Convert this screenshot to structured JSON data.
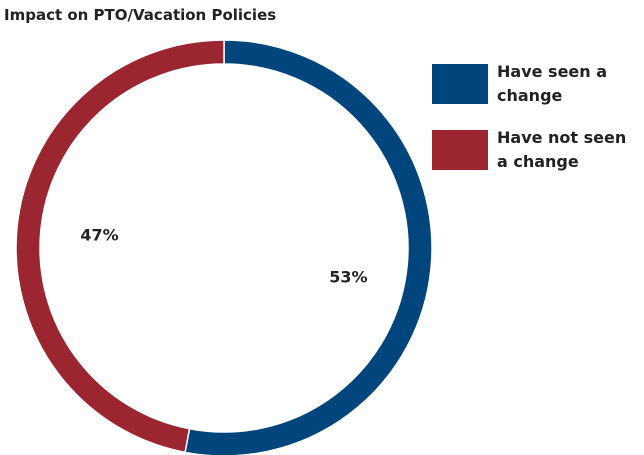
{
  "chart_data": {
    "type": "donut",
    "title": "Impact on PTO/Vacation Policies",
    "categories": [
      "Have seen a change",
      "Have not seen a change"
    ],
    "values": [
      53,
      47
    ],
    "value_labels": [
      "53%",
      "47%"
    ],
    "colors": [
      "#00457c",
      "#9b2530"
    ],
    "legend": "right"
  }
}
